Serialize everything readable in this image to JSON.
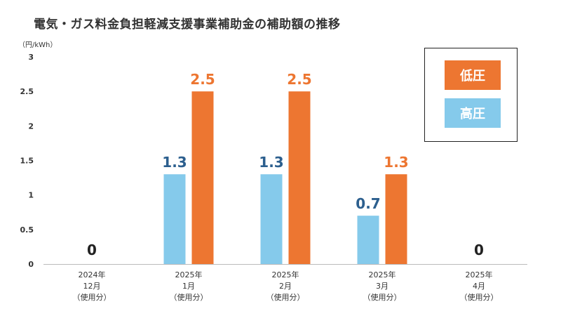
{
  "title": "電気・ガス料金負担軽減支援事業補助金の補助額の推移",
  "unit_label": "（円/kWh）",
  "colors": {
    "low_voltage": "#ED7631",
    "high_voltage": "#85CAEB",
    "high_label_text": "#2C5F8E"
  },
  "legend": {
    "low_voltage": "低圧",
    "high_voltage": "高圧"
  },
  "chart_data": {
    "type": "bar",
    "title": "電気・ガス料金負担軽減支援事業補助金の補助額の推移",
    "ylabel": "（円/kWh）",
    "ylim": [
      0,
      3
    ],
    "yticks": [
      "0",
      "0.5",
      "1",
      "1.5",
      "2",
      "2.5",
      "3"
    ],
    "grid": false,
    "legend_position": "top-right",
    "categories": [
      [
        "2024年",
        "12月",
        "（使用分）"
      ],
      [
        "2025年",
        "1月",
        "（使用分）"
      ],
      [
        "2025年",
        "2月",
        "（使用分）"
      ],
      [
        "2025年",
        "3月",
        "（使用分）"
      ],
      [
        "2025年",
        "4月",
        "（使用分）"
      ]
    ],
    "series": [
      {
        "name": "高圧",
        "values": [
          0,
          1.3,
          1.3,
          0.7,
          0
        ],
        "labels": [
          "",
          "1.3",
          "1.3",
          "0.7",
          ""
        ]
      },
      {
        "name": "低圧",
        "values": [
          0,
          2.5,
          2.5,
          1.3,
          0
        ],
        "labels": [
          "",
          "2.5",
          "2.5",
          "1.3",
          ""
        ]
      }
    ],
    "zero_labels": [
      "0",
      "",
      "",
      "",
      "0"
    ]
  }
}
